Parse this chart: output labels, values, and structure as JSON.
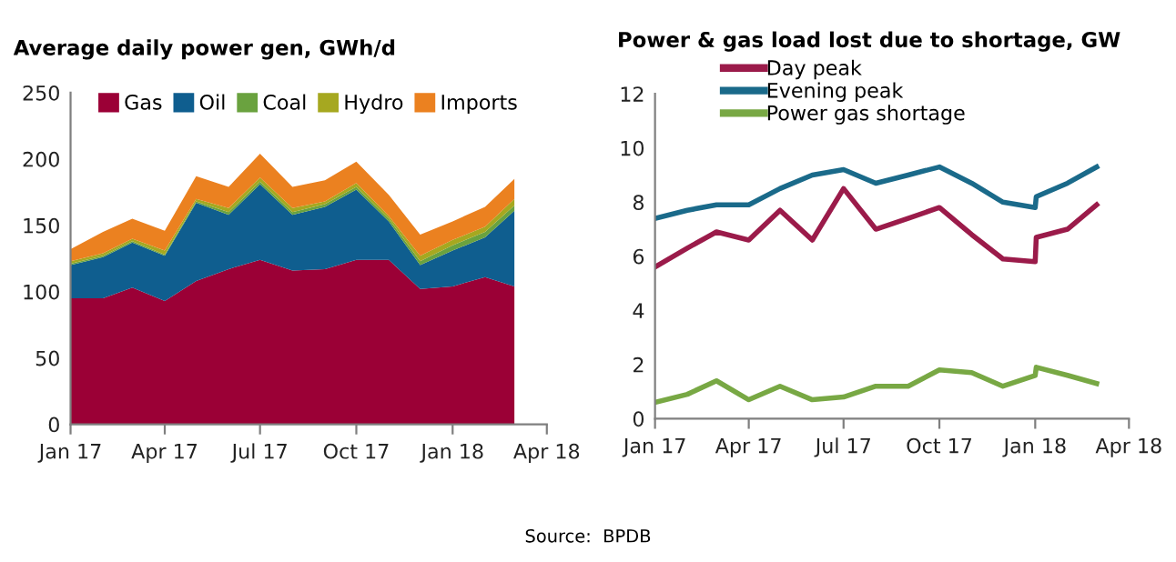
{
  "chart_data": [
    {
      "type": "area",
      "stacked": true,
      "title": "Average daily power gen, GWh/d",
      "x": [
        "2017-01",
        "2017-02",
        "2017-03",
        "2017-04",
        "2017-05",
        "2017-06",
        "2017-07",
        "2017-08",
        "2017-09",
        "2017-10",
        "2017-11",
        "2017-12",
        "2018-01",
        "2018-02",
        "2018-03"
      ],
      "series": [
        {
          "name": "Gas",
          "color": "#9b0036",
          "values": [
            95,
            95,
            103,
            93,
            108,
            117,
            124,
            116,
            117,
            124,
            124,
            102,
            104,
            111,
            104
          ]
        },
        {
          "name": "Oil",
          "color": "#0f5e8f",
          "values": [
            25,
            31,
            34,
            34,
            59,
            41,
            57,
            42,
            47,
            53,
            29,
            18,
            27,
            30,
            57
          ]
        },
        {
          "name": "Coal",
          "color": "#6aa23f",
          "values": [
            1,
            1,
            1,
            1,
            1,
            2,
            2,
            2,
            2,
            2,
            2,
            3,
            4,
            4,
            4
          ]
        },
        {
          "name": "Hydro",
          "color": "#a6a820",
          "values": [
            2,
            2,
            2,
            3,
            2,
            3,
            3,
            3,
            2,
            3,
            2,
            4,
            4,
            4,
            5
          ]
        },
        {
          "name": "Imports",
          "color": "#eb8120",
          "values": [
            9,
            16,
            15,
            15,
            17,
            16,
            18,
            16,
            16,
            16,
            16,
            16,
            14,
            15,
            15
          ]
        }
      ],
      "xlim": [
        "2017-01",
        "2018-04"
      ],
      "xticks": [
        {
          "value": "2017-01",
          "label": "Jan 17"
        },
        {
          "value": "2017-04",
          "label": "Apr 17"
        },
        {
          "value": "2017-07",
          "label": "Jul 17"
        },
        {
          "value": "2017-10",
          "label": "Oct 17"
        },
        {
          "value": "2018-01",
          "label": "Jan 18"
        },
        {
          "value": "2018-04",
          "label": "Apr 18"
        }
      ],
      "ylim": [
        0,
        250
      ],
      "yticks": [
        0,
        50,
        100,
        150,
        200,
        250
      ],
      "grid": false,
      "legend": "top",
      "annotations": [
        "Source:  BPDB"
      ]
    },
    {
      "type": "line",
      "title": "Power & gas load lost due to shortage, GW",
      "series": [
        {
          "name": "Day peak",
          "color": "#9b1b4a",
          "x": [
            "2017-01-01",
            "2017-02-01",
            "2017-03-01",
            "2017-04-01",
            "2017-05-01",
            "2017-06-01",
            "2017-07-01",
            "2017-08-01",
            "2017-09-01",
            "2017-10-01",
            "2017-11-01",
            "2017-12-01",
            "2018-01-01",
            "2018-01-02",
            "2018-02-01",
            "2018-03-01"
          ],
          "values": [
            5.6,
            6.3,
            6.9,
            6.6,
            7.7,
            6.6,
            8.5,
            7.0,
            7.4,
            7.8,
            6.8,
            5.9,
            5.8,
            6.7,
            7.0,
            7.9
          ]
        },
        {
          "name": "Evening peak",
          "color": "#1a6a8a",
          "x": [
            "2017-01-01",
            "2017-02-01",
            "2017-03-01",
            "2017-04-01",
            "2017-05-01",
            "2017-06-01",
            "2017-07-01",
            "2017-08-01",
            "2017-09-01",
            "2017-10-01",
            "2017-11-01",
            "2017-12-01",
            "2018-01-01",
            "2018-01-02",
            "2018-02-01",
            "2018-03-01"
          ],
          "values": [
            7.4,
            7.7,
            7.9,
            7.9,
            8.5,
            9.0,
            9.2,
            8.7,
            9.0,
            9.3,
            8.7,
            8.0,
            7.8,
            8.2,
            8.7,
            9.3
          ]
        },
        {
          "name": "Power gas shortage",
          "color": "#78a844",
          "x": [
            "2017-01-01",
            "2017-02-01",
            "2017-03-01",
            "2017-04-01",
            "2017-05-01",
            "2017-06-01",
            "2017-07-01",
            "2017-08-01",
            "2017-09-01",
            "2017-10-01",
            "2017-11-01",
            "2017-12-01",
            "2018-01-01",
            "2018-01-02",
            "2018-02-01",
            "2018-03-01"
          ],
          "values": [
            0.6,
            0.9,
            1.4,
            0.7,
            1.2,
            0.7,
            0.8,
            1.2,
            1.2,
            1.8,
            1.7,
            1.2,
            1.6,
            1.9,
            1.6,
            1.3
          ]
        }
      ],
      "xlim": [
        "2017-01",
        "2018-04"
      ],
      "xticks": [
        {
          "value": "2017-01",
          "label": "Jan 17"
        },
        {
          "value": "2017-04",
          "label": "Apr 17"
        },
        {
          "value": "2017-07",
          "label": "Jul 17"
        },
        {
          "value": "2017-10",
          "label": "Oct 17"
        },
        {
          "value": "2018-01",
          "label": "Jan 18"
        },
        {
          "value": "2018-04",
          "label": "Apr 18"
        }
      ],
      "ylim": [
        0,
        12
      ],
      "yticks": [
        0,
        2,
        4,
        6,
        8,
        10,
        12
      ],
      "grid": false,
      "legend": "top",
      "line_style": "solid",
      "marker": "none"
    }
  ]
}
